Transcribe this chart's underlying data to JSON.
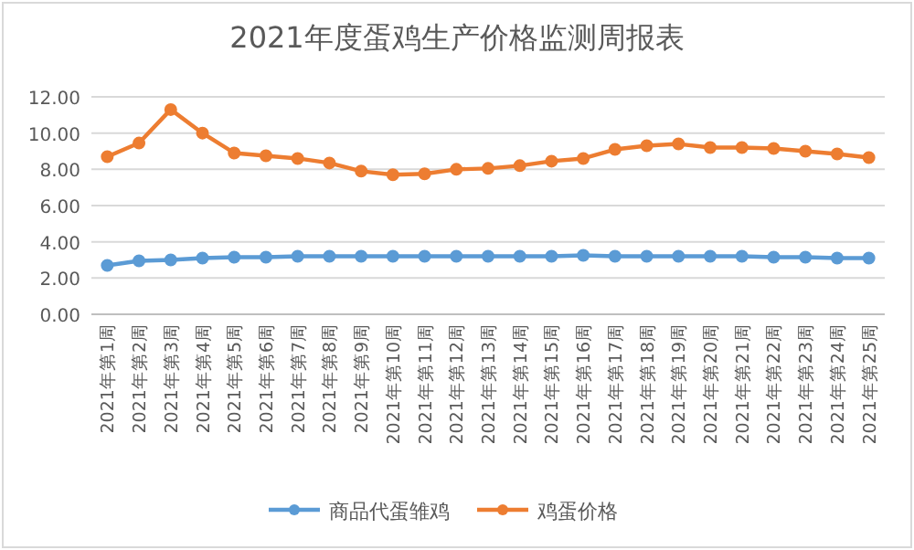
{
  "chart_data": {
    "type": "line",
    "title": "2021年度蛋鸡生产价格监测周报表",
    "categories": [
      "2021年第1周",
      "2021年第2周",
      "2021年第3周",
      "2021年第4周",
      "2021年第5周",
      "2021年第6周",
      "2021年第7周",
      "2021年第8周",
      "2021年第9周",
      "2021年第10周",
      "2021年第11周",
      "2021年第12周",
      "2021年第13周",
      "2021年第14周",
      "2021年第15周",
      "2021年第16周",
      "2021年第17周",
      "2021年第18周",
      "2021年第19周",
      "2021年第20周",
      "2021年第21周",
      "2021年第22周",
      "2021年第23周",
      "2021年第24周",
      "2021年第25周"
    ],
    "series": [
      {
        "name": "商品代蛋雏鸡",
        "color": "#5b9bd5",
        "values": [
          2.7,
          2.95,
          3.0,
          3.1,
          3.15,
          3.15,
          3.2,
          3.2,
          3.2,
          3.2,
          3.2,
          3.2,
          3.2,
          3.2,
          3.2,
          3.25,
          3.2,
          3.2,
          3.2,
          3.2,
          3.2,
          3.15,
          3.15,
          3.1,
          3.1
        ]
      },
      {
        "name": "鸡蛋价格",
        "color": "#ed7d31",
        "values": [
          8.7,
          9.45,
          11.3,
          10.0,
          8.9,
          8.75,
          8.6,
          8.35,
          7.9,
          7.7,
          7.75,
          8.0,
          8.05,
          8.2,
          8.45,
          8.6,
          9.1,
          9.3,
          9.4,
          9.2,
          9.2,
          9.15,
          9.0,
          8.85,
          8.65
        ]
      }
    ],
    "ylim": [
      0,
      12
    ],
    "yticks": [
      {
        "value": 0,
        "label": "0.00"
      },
      {
        "value": 2,
        "label": "2.00"
      },
      {
        "value": 4,
        "label": "4.00"
      },
      {
        "value": 6,
        "label": "6.00"
      },
      {
        "value": 8,
        "label": "8.00"
      },
      {
        "value": 10,
        "label": "10.00"
      },
      {
        "value": 12,
        "label": "12.00"
      }
    ],
    "grid": "y",
    "legend": "bottom",
    "marker": "circle",
    "line_style": "solid"
  }
}
